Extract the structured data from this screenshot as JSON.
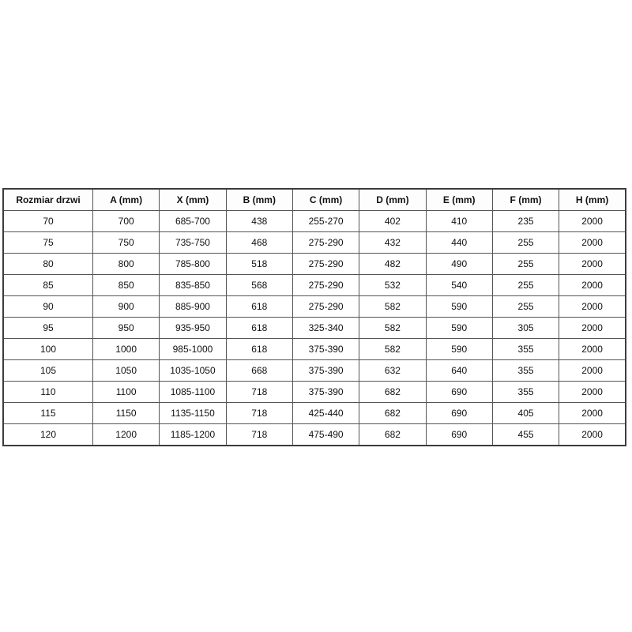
{
  "table": {
    "columns": [
      "Rozmiar drzwi",
      "A (mm)",
      "X (mm)",
      "B (mm)",
      "C (mm)",
      "D (mm)",
      "E (mm)",
      "F (mm)",
      "H (mm)"
    ],
    "rows": [
      [
        "70",
        "700",
        "685-700",
        "438",
        "255-270",
        "402",
        "410",
        "235",
        "2000"
      ],
      [
        "75",
        "750",
        "735-750",
        "468",
        "275-290",
        "432",
        "440",
        "255",
        "2000"
      ],
      [
        "80",
        "800",
        "785-800",
        "518",
        "275-290",
        "482",
        "490",
        "255",
        "2000"
      ],
      [
        "85",
        "850",
        "835-850",
        "568",
        "275-290",
        "532",
        "540",
        "255",
        "2000"
      ],
      [
        "90",
        "900",
        "885-900",
        "618",
        "275-290",
        "582",
        "590",
        "255",
        "2000"
      ],
      [
        "95",
        "950",
        "935-950",
        "618",
        "325-340",
        "582",
        "590",
        "305",
        "2000"
      ],
      [
        "100",
        "1000",
        "985-1000",
        "618",
        "375-390",
        "582",
        "590",
        "355",
        "2000"
      ],
      [
        "105",
        "1050",
        "1035-1050",
        "668",
        "375-390",
        "632",
        "640",
        "355",
        "2000"
      ],
      [
        "110",
        "1100",
        "1085-1100",
        "718",
        "375-390",
        "682",
        "690",
        "355",
        "2000"
      ],
      [
        "115",
        "1150",
        "1135-1150",
        "718",
        "425-440",
        "682",
        "690",
        "405",
        "2000"
      ],
      [
        "120",
        "1200",
        "1185-1200",
        "718",
        "475-490",
        "682",
        "690",
        "455",
        "2000"
      ]
    ]
  },
  "colors": {
    "page_background": "#ffffff",
    "header_background": "#fdfdfd",
    "border_outer": "#3c3c3c",
    "border_inner": "#555555",
    "text": "#111111"
  }
}
